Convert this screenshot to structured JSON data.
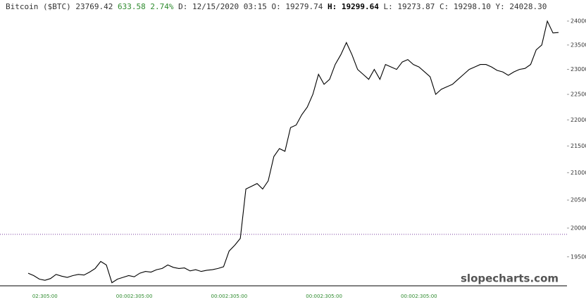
{
  "chart_data": {
    "type": "line",
    "title": "Bitcoin ($BTC)",
    "quote": {
      "last": "23769.42",
      "change": "633.58",
      "change_pct": "2.74%",
      "fields": [
        {
          "label": "D:",
          "value": "12/15/2020 03:15"
        },
        {
          "label": "O:",
          "value": "19279.74"
        },
        {
          "label": "H:",
          "value": "19299.64"
        },
        {
          "label": "L:",
          "value": "19273.87"
        },
        {
          "label": "C:",
          "value": "19298.10"
        },
        {
          "label": "Y:",
          "value": "24028.30"
        }
      ]
    },
    "watermark": "slopecharts.com",
    "log_scale": true,
    "color": "#000000",
    "reference_line": 19890,
    "reference_color": "#7b3fa0",
    "ylim": [
      19020,
      24450
    ],
    "yticks": [
      19500,
      20000,
      20500,
      21000,
      21500,
      22000,
      22500,
      23000,
      23500,
      24000
    ],
    "categories": [
      null,
      null,
      null,
      "02:305:00",
      null,
      null,
      null,
      null,
      null,
      null,
      null,
      null,
      null,
      null,
      null,
      null,
      null,
      null,
      null,
      "00:002:305:00",
      null,
      null,
      null,
      null,
      null,
      null,
      null,
      null,
      null,
      null,
      null,
      null,
      null,
      null,
      null,
      null,
      "00:002:305:00",
      null,
      null,
      null,
      null,
      null,
      null,
      null,
      null,
      null,
      null,
      null,
      null,
      null,
      null,
      null,
      null,
      "00:002:305:00",
      null,
      null,
      null,
      null,
      null,
      null,
      null,
      null,
      null,
      null,
      null,
      null,
      null,
      null,
      null,
      null,
      "00:002:305:00",
      null,
      null,
      null,
      null,
      null,
      null,
      null,
      null,
      null,
      null,
      null,
      null,
      null,
      null,
      null,
      null,
      null,
      null,
      null,
      null,
      null,
      null,
      null,
      null,
      null
    ],
    "values": [
      19220,
      19180,
      19120,
      19100,
      19130,
      19200,
      19170,
      19150,
      19180,
      19200,
      19190,
      19240,
      19300,
      19420,
      19360,
      19060,
      19120,
      19150,
      19180,
      19160,
      19220,
      19250,
      19240,
      19280,
      19300,
      19360,
      19320,
      19300,
      19310,
      19260,
      19280,
      19250,
      19270,
      19280,
      19300,
      19330,
      19600,
      19700,
      19820,
      20700,
      20750,
      20800,
      20700,
      20850,
      21300,
      21450,
      21400,
      21850,
      21900,
      22100,
      22250,
      22500,
      22900,
      22700,
      22800,
      23100,
      23300,
      23550,
      23300,
      23000,
      22900,
      22800,
      23000,
      22800,
      23100,
      23050,
      23000,
      23150,
      23200,
      23100,
      23050,
      22950,
      22850,
      22500,
      22600,
      22650,
      22700,
      22800,
      22900,
      23000,
      23050,
      23100,
      23100,
      23050,
      22980,
      22950,
      22880,
      22950,
      23000,
      23020,
      23100,
      23400,
      23500,
      24000,
      23750,
      23760
    ]
  }
}
